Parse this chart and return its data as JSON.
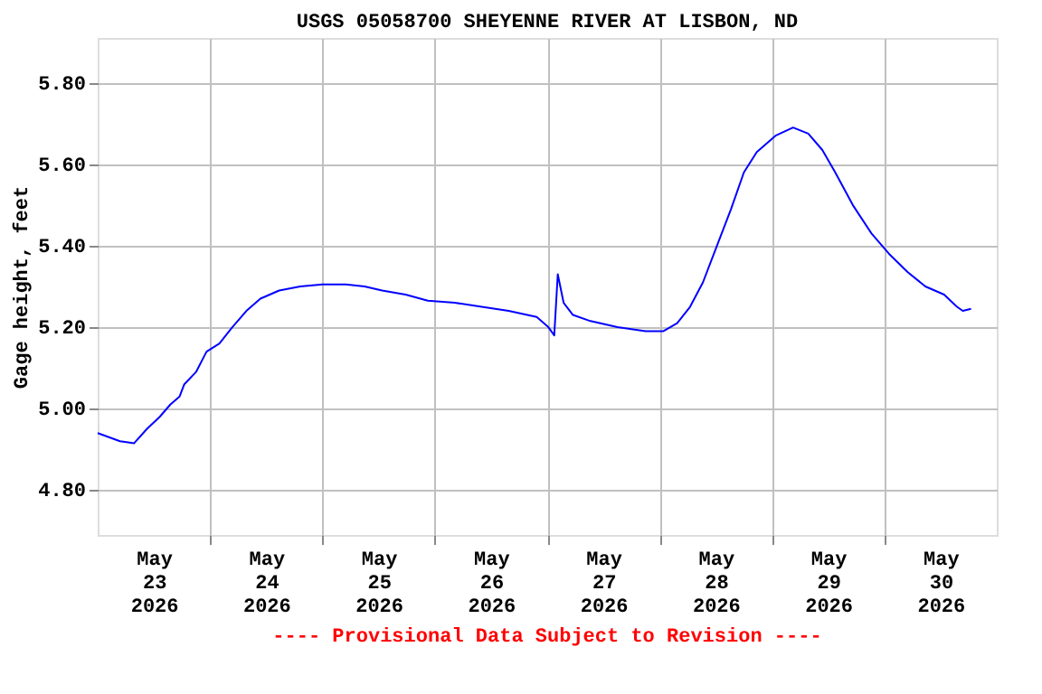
{
  "chart_data": {
    "type": "line",
    "title": "USGS 05058700 SHEYENNE RIVER AT LISBON, ND",
    "ylabel": "Gage height, feet",
    "annotations": [
      "---- Provisional Data Subject to Revision ----"
    ],
    "x": [
      "2026-05-23T00:00",
      "2026-05-23T04:45",
      "2026-05-23T07:45",
      "2026-05-23T10:30",
      "2026-05-23T13:15",
      "2026-05-23T15:30",
      "2026-05-23T17:30",
      "2026-05-23T18:30",
      "2026-05-23T21:00",
      "2026-05-23T23:15",
      "2026-05-24T02:00",
      "2026-05-24T04:45",
      "2026-05-24T07:45",
      "2026-05-24T10:45",
      "2026-05-24T14:45",
      "2026-05-24T19:15",
      "2026-05-25T00:00",
      "2026-05-25T05:00",
      "2026-05-25T09:00",
      "2026-05-25T12:45",
      "2026-05-25T17:45",
      "2026-05-25T22:30",
      "2026-05-26T04:15",
      "2026-05-26T10:00",
      "2026-05-26T15:45",
      "2026-05-26T21:45",
      "2026-05-27T00:15",
      "2026-05-27T01:30",
      "2026-05-27T02:15",
      "2026-05-27T03:30",
      "2026-05-27T05:30",
      "2026-05-27T09:15",
      "2026-05-27T15:00",
      "2026-05-27T21:00",
      "2026-05-28T00:45",
      "2026-05-28T03:45",
      "2026-05-28T06:30",
      "2026-05-28T09:15",
      "2026-05-28T12:15",
      "2026-05-28T15:15",
      "2026-05-28T18:00",
      "2026-05-28T20:45",
      "2026-05-29T00:45",
      "2026-05-29T04:30",
      "2026-05-29T07:45",
      "2026-05-29T10:45",
      "2026-05-29T13:30",
      "2026-05-29T17:15",
      "2026-05-29T21:15",
      "2026-05-30T01:00",
      "2026-05-30T05:00",
      "2026-05-30T08:45",
      "2026-05-30T12:45",
      "2026-05-30T15:30",
      "2026-05-30T16:45",
      "2026-05-30T18:30"
    ],
    "series": [
      {
        "color": "#0000ff",
        "values": [
          4.94,
          4.92,
          4.915,
          4.95,
          4.98,
          5.01,
          5.03,
          5.06,
          5.09,
          5.14,
          5.16,
          5.2,
          5.24,
          5.27,
          5.29,
          5.3,
          5.305,
          5.305,
          5.3,
          5.29,
          5.28,
          5.265,
          5.26,
          5.25,
          5.24,
          5.225,
          5.2,
          5.18,
          5.33,
          5.26,
          5.23,
          5.215,
          5.2,
          5.19,
          5.19,
          5.21,
          5.25,
          5.31,
          5.4,
          5.49,
          5.58,
          5.63,
          5.67,
          5.69,
          5.675,
          5.635,
          5.58,
          5.5,
          5.43,
          5.38,
          5.335,
          5.3,
          5.28,
          5.25,
          5.24,
          5.245
        ]
      }
    ],
    "xlim": [
      "2026-05-23T00:00",
      "2026-05-31T00:00"
    ],
    "xticks": [
      {
        "value": "2026-05-23T12:00",
        "label": "May\n23\n2026"
      },
      {
        "value": "2026-05-24T12:00",
        "label": "May\n24\n2026"
      },
      {
        "value": "2026-05-25T12:00",
        "label": "May\n25\n2026"
      },
      {
        "value": "2026-05-26T12:00",
        "label": "May\n26\n2026"
      },
      {
        "value": "2026-05-27T12:00",
        "label": "May\n27\n2026"
      },
      {
        "value": "2026-05-28T12:00",
        "label": "May\n28\n2026"
      },
      {
        "value": "2026-05-29T12:00",
        "label": "May\n29\n2026"
      },
      {
        "value": "2026-05-30T12:00",
        "label": "May\n30\n2026"
      },
      {
        "value": "2026-05-24T00:00",
        "label": null
      },
      {
        "value": "2026-05-25T00:00",
        "label": null
      },
      {
        "value": "2026-05-26T00:00",
        "label": null
      },
      {
        "value": "2026-05-27T00:00",
        "label": null
      },
      {
        "value": "2026-05-28T00:00",
        "label": null
      },
      {
        "value": "2026-05-29T00:00",
        "label": null
      },
      {
        "value": "2026-05-30T00:00",
        "label": null
      }
    ],
    "ylim": [
      4.69,
      5.91
    ],
    "yticks": [
      {
        "value": 4.8,
        "label": "4.80"
      },
      {
        "value": 5.0,
        "label": "5.00"
      },
      {
        "value": 5.2,
        "label": "5.20"
      },
      {
        "value": 5.4,
        "label": "5.40"
      },
      {
        "value": 5.6,
        "label": "5.60"
      },
      {
        "value": 5.8,
        "label": "5.80"
      }
    ],
    "grid": true
  }
}
